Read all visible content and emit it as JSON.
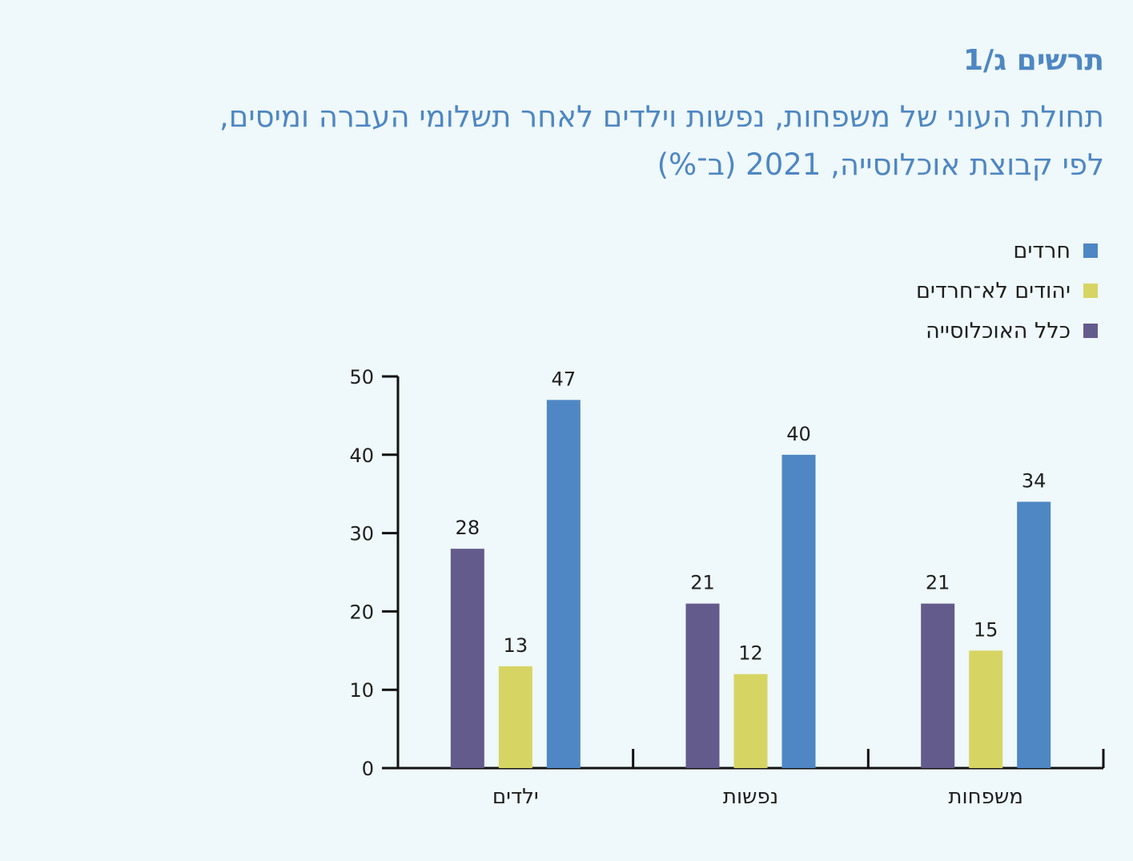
{
  "figure": {
    "label": "תרשים ג/1",
    "title_line1": "תחולת העוני של משפחות, נפשות וילדים לאחר תשלומי העברה ומיסים,",
    "title_line2": "לפי קבוצת אוכלוסייה, 2021 (ב־%)"
  },
  "chart_data": {
    "type": "bar",
    "categories": [
      "משפחות",
      "נפשות",
      "ילדים"
    ],
    "series": [
      {
        "name": "חרדים",
        "color": "#4e87c3",
        "values": [
          34,
          40,
          47
        ]
      },
      {
        "name": "יהודים לא־חרדים",
        "color": "#d6d564",
        "values": [
          15,
          12,
          13
        ]
      },
      {
        "name": "כלל האוכלוסייה",
        "color": "#635b8c",
        "values": [
          21,
          21,
          28
        ]
      }
    ],
    "ylim": [
      0,
      50
    ],
    "yticks": [
      "0",
      "10",
      "20",
      "30",
      "40",
      "50"
    ],
    "legend_position": "top-right",
    "grid": false,
    "category_order": "right-to-left"
  }
}
